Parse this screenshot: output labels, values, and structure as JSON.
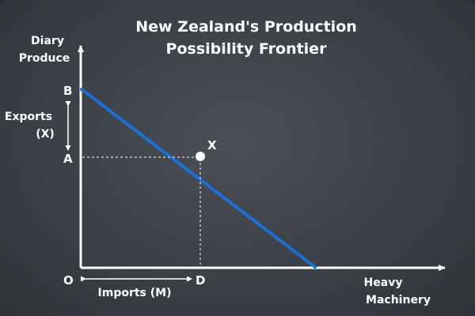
{
  "title": {
    "line1": "New Zealand's Production",
    "line2": "Possibility Frontier"
  },
  "axes": {
    "y_label_line1": "Diary",
    "y_label_line2": "Produce",
    "x_label_line1": "Heavy",
    "x_label_line2": "Machinery"
  },
  "points": {
    "origin": "O",
    "b": "B",
    "a": "A",
    "d": "D",
    "x": "X"
  },
  "annotations": {
    "exports_line1": "Exports",
    "exports_line2": "(X)",
    "imports": "Imports (M)"
  },
  "colors": {
    "frontier": "#1a6fd8",
    "axis": "#ffffff",
    "text": "#ffffff"
  }
}
